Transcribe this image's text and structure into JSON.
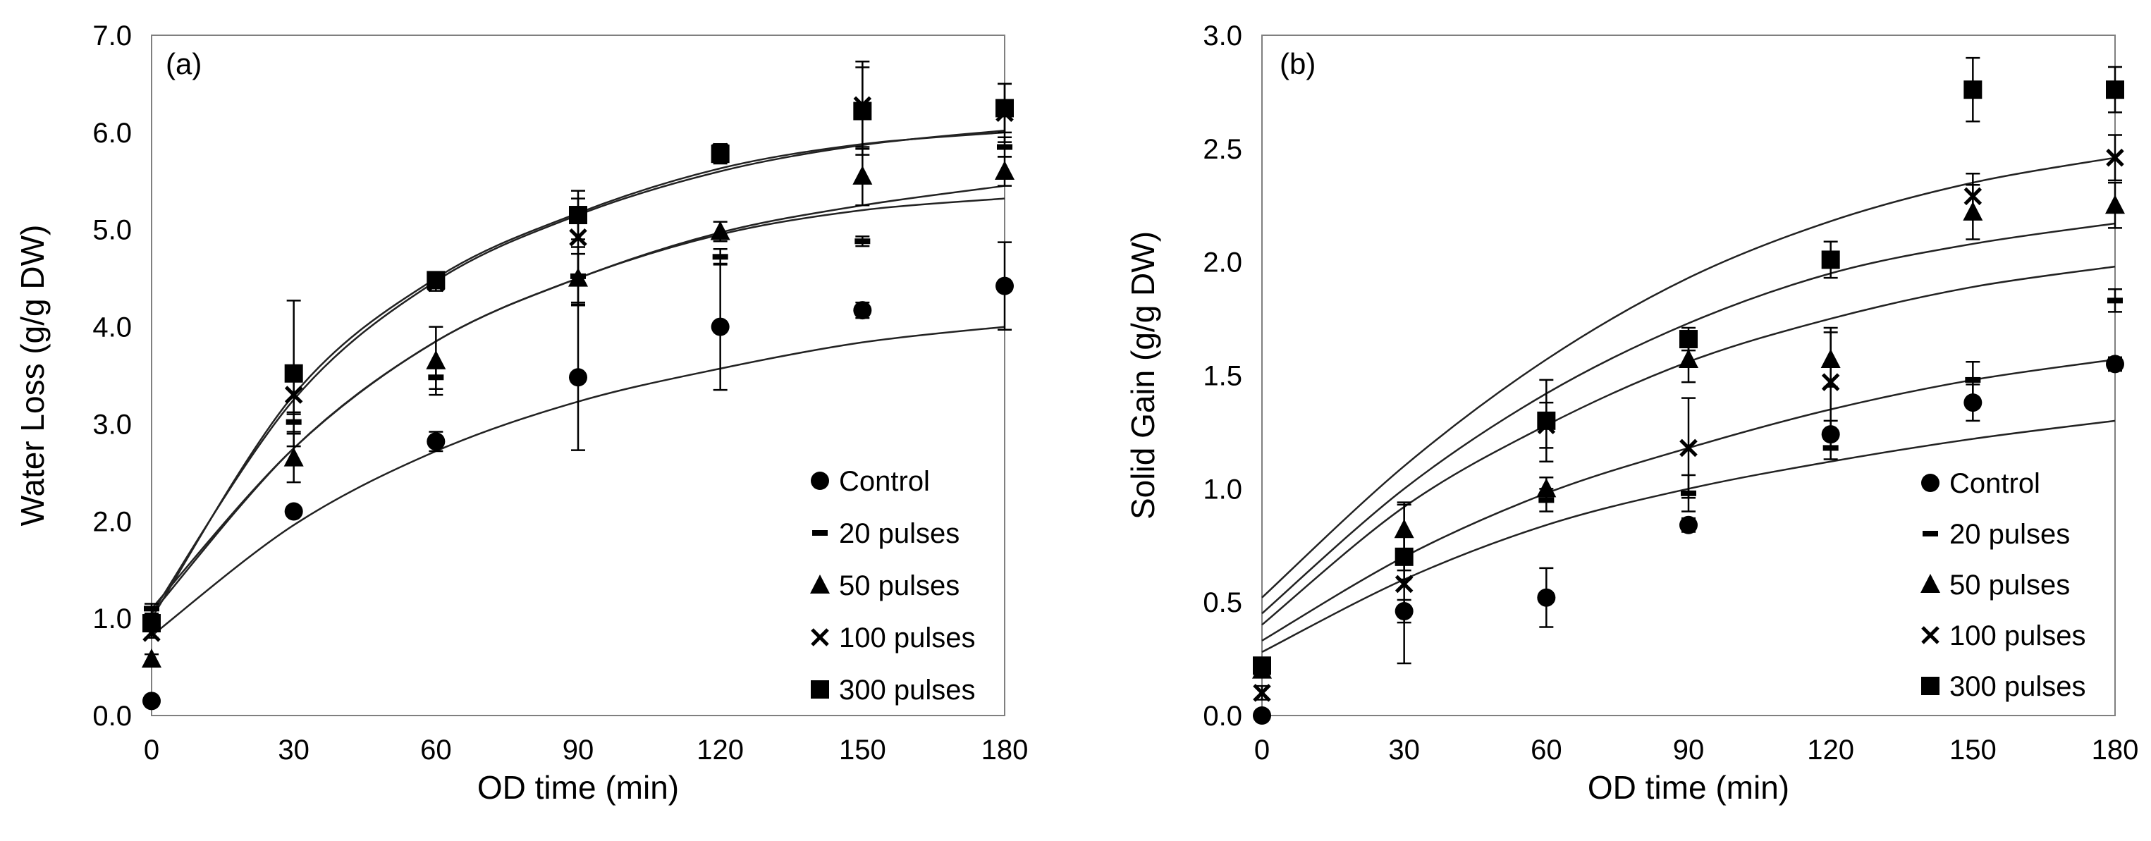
{
  "chart_data": [
    {
      "type": "scatter",
      "panel_label": "(a)",
      "xlabel": "OD time (min)",
      "ylabel": "Water Loss (g/g DW)",
      "xlim": [
        0,
        180
      ],
      "ylim": [
        0,
        7
      ],
      "xticks": [
        "0",
        "30",
        "60",
        "90",
        "120",
        "150",
        "180"
      ],
      "yticks": [
        "0.0",
        "1.0",
        "2.0",
        "3.0",
        "4.0",
        "5.0",
        "6.0",
        "7.0"
      ],
      "grid": false,
      "legend_position": "bottom-right",
      "x": [
        0,
        30,
        60,
        90,
        120,
        150,
        180
      ],
      "series": [
        {
          "name": "Control",
          "marker": "circle",
          "values": [
            0.15,
            2.1,
            2.82,
            3.48,
            4.0,
            4.17,
            4.42
          ],
          "errors": [
            0.05,
            0.05,
            0.1,
            0.75,
            0.65,
            0.08,
            0.45
          ],
          "fit": [
            0.82,
            1.96,
            2.72,
            3.23,
            3.57,
            3.84,
            4.0
          ]
        },
        {
          "name": "20 pulses",
          "marker": "dash",
          "values": [
            1.1,
            3.02,
            3.48,
            4.52,
            4.72,
            4.88,
            5.85
          ],
          "errors": [
            0.05,
            0.1,
            0.12,
            0.3,
            0.08,
            0.05,
            0.1
          ],
          "fit": [
            1.05,
            2.75,
            3.85,
            4.5,
            4.95,
            5.2,
            5.32
          ]
        },
        {
          "name": "50 pulses",
          "marker": "triangle",
          "values": [
            0.58,
            2.65,
            3.65,
            4.5,
            4.98,
            5.55,
            5.6
          ],
          "errors": [
            0.05,
            0.25,
            0.35,
            0.25,
            0.1,
            0.3,
            0.15
          ],
          "fit": [
            1.1,
            2.75,
            3.85,
            4.5,
            4.97,
            5.25,
            5.45
          ]
        },
        {
          "name": "100 pulses",
          "marker": "cross",
          "values": [
            0.85,
            3.3,
            4.45,
            4.92,
            5.8,
            6.28,
            6.2
          ],
          "errors": [
            0.05,
            0.2,
            0.08,
            0.4,
            0.08,
            0.45,
            0.3
          ],
          "fit": [
            1.05,
            3.25,
            4.47,
            5.15,
            5.6,
            5.87,
            6.02
          ]
        },
        {
          "name": "300 pulses",
          "marker": "square",
          "values": [
            0.95,
            3.52,
            4.48,
            5.15,
            5.78,
            6.22,
            6.25
          ],
          "errors": [
            0.05,
            0.75,
            0.05,
            0.25,
            0.1,
            0.45,
            0.25
          ],
          "fit": [
            1.0,
            3.3,
            4.5,
            5.17,
            5.63,
            5.88,
            6.0
          ]
        }
      ]
    },
    {
      "type": "scatter",
      "panel_label": "(b)",
      "xlabel": "OD time (min)",
      "ylabel": "Solid Gain (g/g DW)",
      "xlim": [
        0,
        180
      ],
      "ylim": [
        0,
        3
      ],
      "xticks": [
        "0",
        "30",
        "60",
        "90",
        "120",
        "150",
        "180"
      ],
      "yticks": [
        "0.0",
        "0.5",
        "1.0",
        "1.5",
        "2.0",
        "2.5",
        "3.0"
      ],
      "grid": false,
      "legend_position": "bottom-right",
      "x": [
        0,
        30,
        60,
        90,
        120,
        150,
        180
      ],
      "series": [
        {
          "name": "Control",
          "marker": "circle",
          "values": [
            0.0,
            0.46,
            0.52,
            0.84,
            1.24,
            1.38,
            1.55
          ],
          "errors": [
            0.02,
            0.05,
            0.13,
            0.03,
            0.06,
            0.08,
            0.03
          ],
          "fit": [
            0.28,
            0.6,
            0.84,
            1.0,
            1.12,
            1.22,
            1.3
          ]
        },
        {
          "name": "20 pulses",
          "marker": "dash",
          "values": [
            0.2,
            0.72,
            0.95,
            0.98,
            1.18,
            1.48,
            1.83
          ],
          "errors": [
            0.03,
            0.08,
            0.05,
            0.08,
            0.05,
            0.08,
            0.05
          ],
          "fit": [
            0.33,
            0.7,
            0.98,
            1.18,
            1.35,
            1.48,
            1.57
          ]
        },
        {
          "name": "50 pulses",
          "marker": "triangle",
          "values": [
            0.2,
            0.82,
            1.0,
            1.57,
            1.57,
            2.22,
            2.25
          ],
          "errors": [
            0.03,
            0.12,
            0.05,
            0.1,
            0.12,
            0.12,
            0.1
          ],
          "fit": [
            0.4,
            0.92,
            1.28,
            1.56,
            1.75,
            1.89,
            1.98
          ]
        },
        {
          "name": "100 pulses",
          "marker": "cross",
          "values": [
            0.1,
            0.58,
            1.28,
            1.18,
            1.47,
            2.29,
            2.46
          ],
          "errors": [
            0.03,
            0.35,
            0.1,
            0.22,
            0.24,
            0.1,
            0.1
          ],
          "fit": [
            0.45,
            1.0,
            1.42,
            1.73,
            1.95,
            2.08,
            2.17
          ]
        },
        {
          "name": "300 pulses",
          "marker": "square",
          "values": [
            0.22,
            0.7,
            1.3,
            1.66,
            2.01,
            2.76,
            2.76
          ],
          "errors": [
            0.03,
            0.1,
            0.18,
            0.05,
            0.08,
            0.14,
            0.1
          ],
          "fit": [
            0.52,
            1.1,
            1.57,
            1.93,
            2.18,
            2.35,
            2.46
          ]
        }
      ]
    }
  ]
}
